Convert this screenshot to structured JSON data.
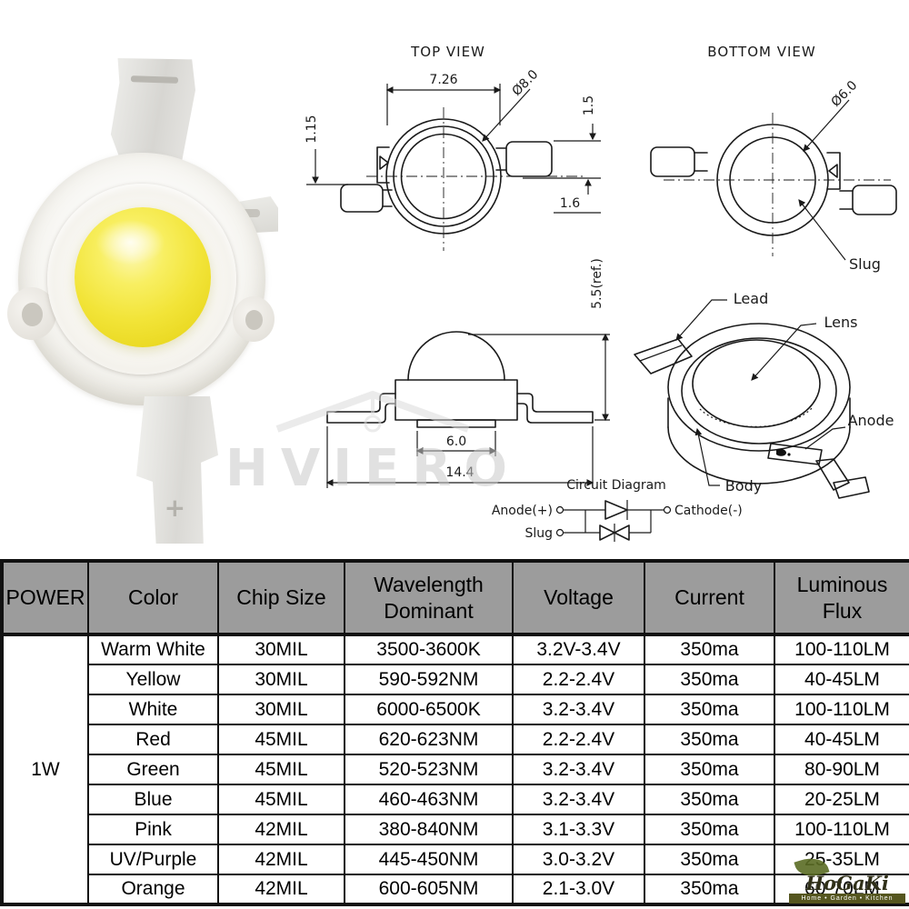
{
  "drawings": {
    "top_view": {
      "title": "TOP VIEW",
      "dim_width": "7.26",
      "dim_diameter": "Ø8.0",
      "dim_left": "1.15",
      "dim_right_top": "1.5",
      "dim_right_bottom": "1.6"
    },
    "bottom_view": {
      "title": "BOTTOM VIEW",
      "dim_diameter": "Ø6.0",
      "label_slug": "Slug"
    },
    "side_view": {
      "dim_height": "5.5(ref.)",
      "dim_slug_width": "6.0",
      "dim_lead_span": "14.4"
    },
    "perspective_view": {
      "label_lead": "Lead",
      "label_lens": "Lens",
      "label_anode": "Anode",
      "label_body": "Body"
    },
    "circuit": {
      "title": "Circuit Diagram",
      "label_anode": "Anode(+)",
      "label_slug": "Slug",
      "label_cathode": "Cathode(-)"
    }
  },
  "watermarks": {
    "center": "HVIERO",
    "corner_brand": "HoGaKi",
    "corner_tagline": "Home • Garden • Kitchen"
  },
  "table": {
    "headers": [
      "POWER",
      "Color",
      "Chip Size",
      "Wavelength Dominant",
      "Voltage",
      "Current",
      "Luminous Flux"
    ],
    "power_value": "1W",
    "rows": [
      {
        "color": "Warm White",
        "chip_size": "30MIL",
        "wavelength": "3500-3600K",
        "voltage": "3.2V-3.4V",
        "current": "350ma",
        "flux": "100-110LM"
      },
      {
        "color": "Yellow",
        "chip_size": "30MIL",
        "wavelength": "590-592NM",
        "voltage": "2.2-2.4V",
        "current": "350ma",
        "flux": "40-45LM"
      },
      {
        "color": "White",
        "chip_size": "30MIL",
        "wavelength": "6000-6500K",
        "voltage": "3.2-3.4V",
        "current": "350ma",
        "flux": "100-110LM"
      },
      {
        "color": "Red",
        "chip_size": "45MIL",
        "wavelength": "620-623NM",
        "voltage": "2.2-2.4V",
        "current": "350ma",
        "flux": "40-45LM"
      },
      {
        "color": "Green",
        "chip_size": "45MIL",
        "wavelength": "520-523NM",
        "voltage": "3.2-3.4V",
        "current": "350ma",
        "flux": "80-90LM"
      },
      {
        "color": "Blue",
        "chip_size": "45MIL",
        "wavelength": "460-463NM",
        "voltage": "3.2-3.4V",
        "current": "350ma",
        "flux": "20-25LM"
      },
      {
        "color": "Pink",
        "chip_size": "42MIL",
        "wavelength": "380-840NM",
        "voltage": "3.1-3.3V",
        "current": "350ma",
        "flux": "100-110LM"
      },
      {
        "color": "UV/Purple",
        "chip_size": "42MIL",
        "wavelength": "445-450NM",
        "voltage": "3.0-3.2V",
        "current": "350ma",
        "flux": "25-35LM"
      },
      {
        "color": "Orange",
        "chip_size": "42MIL",
        "wavelength": "600-605NM",
        "voltage": "2.1-3.0V",
        "current": "350ma",
        "flux": "60-70LM"
      }
    ]
  },
  "colors": {
    "table_header_bg": "#9c9c9c",
    "table_border": "#111111",
    "drawing_line": "#1a1a1a",
    "led_dome_yellow": "#f2e63e",
    "watermark_gray": "#c9c9c9",
    "brand_olive": "#55561f"
  }
}
